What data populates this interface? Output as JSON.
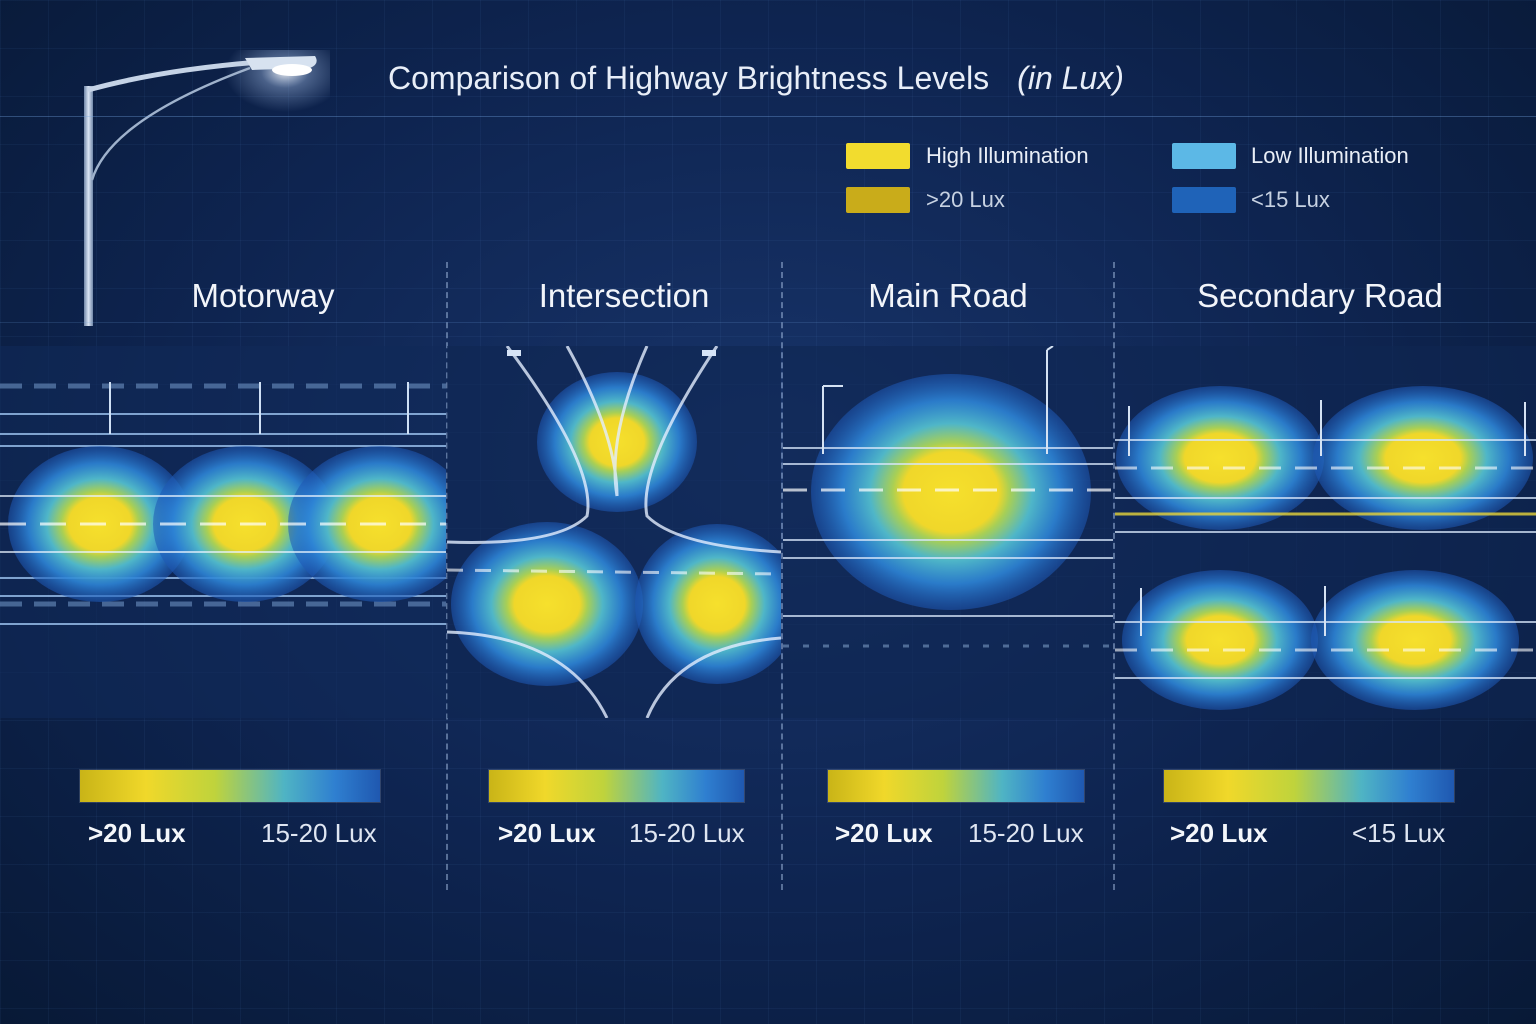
{
  "header": {
    "title": "Comparison of Highway Brightness Levels",
    "unit_note": "(in Lux)"
  },
  "legend": {
    "high": {
      "label": "High Illumination",
      "range": ">20 Lux",
      "color": "#f2dc2e",
      "range_color": "#c9ac1a"
    },
    "low": {
      "label": "Low Illumination",
      "range": "<15 Lux",
      "color": "#5cb8e6",
      "range_color": "#1f63b8"
    }
  },
  "columns": [
    {
      "title": "Motorway",
      "scale_high": ">20 Lux",
      "scale_low": "15-20 Lux"
    },
    {
      "title": "Intersection",
      "scale_high": ">20 Lux",
      "scale_low": "15-20 Lux"
    },
    {
      "title": "Main Road",
      "scale_high": ">20 Lux",
      "scale_low": "15-20 Lux"
    },
    {
      "title": "Secondary Road",
      "scale_high": ">20 Lux",
      "scale_low": "<15 Lux"
    }
  ],
  "icons": [
    "street-lamp-icon",
    "light-pole-icon"
  ],
  "colors": {
    "background": "#0d2248",
    "high": "#f2dc2e",
    "mid": "#4fb4c4",
    "low": "#1f58b0"
  }
}
